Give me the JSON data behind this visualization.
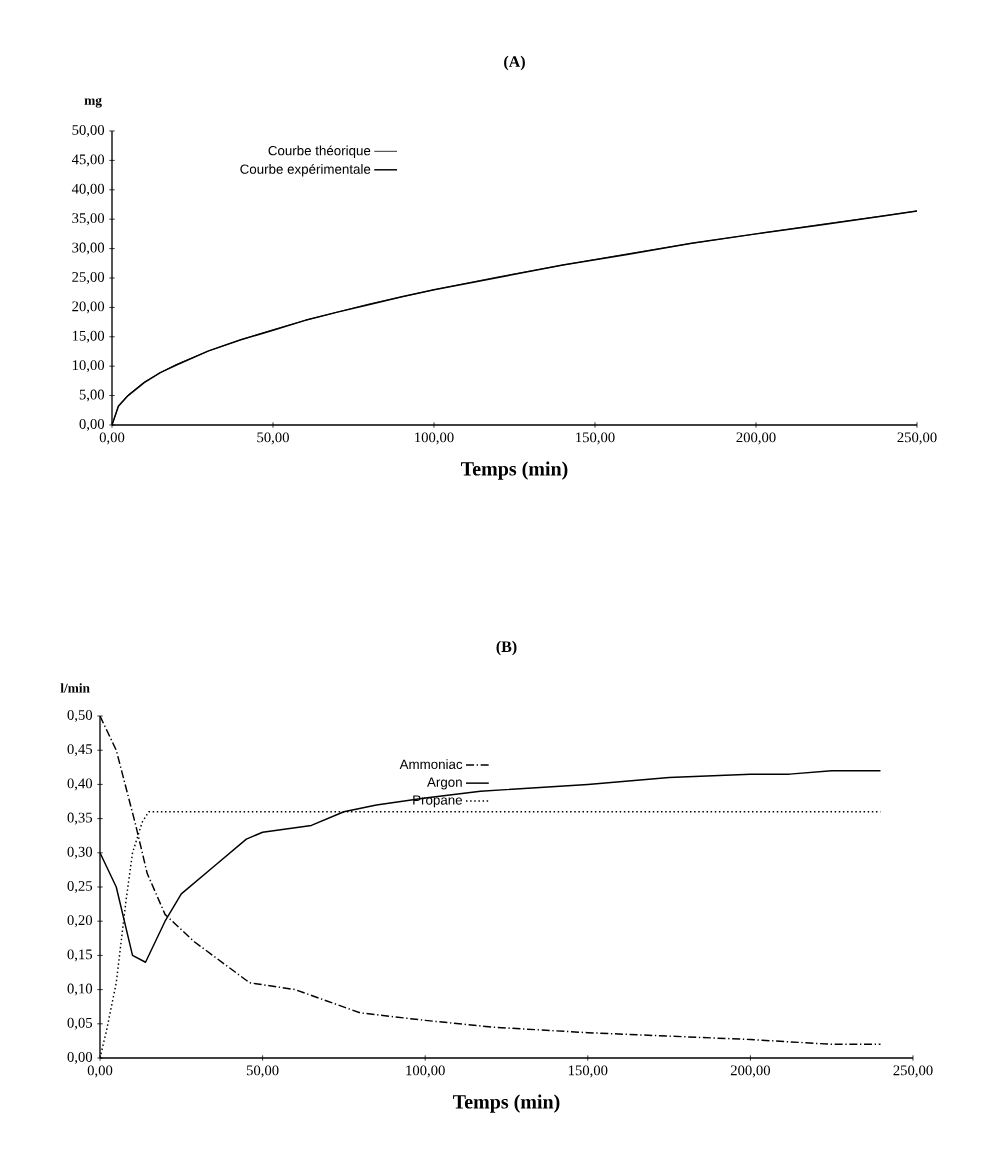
{
  "chart_data": [
    {
      "type": "line",
      "title": "(A)",
      "xlabel": "Temps (min)",
      "ylabel": "mg",
      "xlim": [
        0,
        250
      ],
      "ylim": [
        0,
        50
      ],
      "xticks": [
        {
          "value": 0,
          "label": "0,00"
        },
        {
          "value": 50,
          "label": "50,00"
        },
        {
          "value": 100,
          "label": "100,00"
        },
        {
          "value": 150,
          "label": "150,00"
        },
        {
          "value": 200,
          "label": "200,00"
        },
        {
          "value": 250,
          "label": "250,00"
        }
      ],
      "yticks": [
        {
          "value": 0,
          "label": "0,00"
        },
        {
          "value": 5,
          "label": "5,00"
        },
        {
          "value": 10,
          "label": "10,00"
        },
        {
          "value": 15,
          "label": "15,00"
        },
        {
          "value": 20,
          "label": "20,00"
        },
        {
          "value": 25,
          "label": "25,00"
        },
        {
          "value": 30,
          "label": "30,00"
        },
        {
          "value": 35,
          "label": "35,00"
        },
        {
          "value": 40,
          "label": "40,00"
        },
        {
          "value": 45,
          "label": "45,00"
        },
        {
          "value": 50,
          "label": "50,00"
        }
      ],
      "legend": "top left",
      "marker": "none",
      "x": [
        0,
        2,
        5,
        10,
        15,
        20,
        30,
        40,
        50,
        60,
        70,
        80,
        90,
        100,
        120,
        140,
        160,
        180,
        200,
        220,
        240,
        250
      ],
      "series": [
        {
          "name": "Courbe théorique",
          "color": "#000000",
          "line_style": "solid",
          "values": [
            0,
            3.3,
            5.1,
            7.3,
            8.9,
            10.3,
            12.6,
            14.5,
            16.2,
            17.8,
            19.2,
            20.6,
            21.8,
            23.0,
            25.2,
            27.2,
            29.1,
            30.9,
            32.5,
            34.1,
            35.6,
            36.4
          ]
        },
        {
          "name": "Courbe expérimentale",
          "color": "#000000",
          "line_style": "solid",
          "values": [
            0,
            3.2,
            5.0,
            7.2,
            8.9,
            10.2,
            12.6,
            14.5,
            16.1,
            17.8,
            19.2,
            20.5,
            21.8,
            23.0,
            25.1,
            27.2,
            29.0,
            30.9,
            32.5,
            34.0,
            35.6,
            36.4
          ]
        }
      ]
    },
    {
      "type": "line",
      "title": "(B)",
      "xlabel": "Temps (min)",
      "ylabel": "l/min",
      "xlim": [
        0,
        250
      ],
      "ylim": [
        0,
        0.5
      ],
      "xticks": [
        {
          "value": 0,
          "label": "0,00"
        },
        {
          "value": 50,
          "label": "50,00"
        },
        {
          "value": 100,
          "label": "100,00"
        },
        {
          "value": 150,
          "label": "150,00"
        },
        {
          "value": 200,
          "label": "200,00"
        },
        {
          "value": 250,
          "label": "250,00"
        }
      ],
      "yticks": [
        {
          "value": 0,
          "label": "0,00"
        },
        {
          "value": 0.05,
          "label": "0,05"
        },
        {
          "value": 0.1,
          "label": "0,10"
        },
        {
          "value": 0.15,
          "label": "0,15"
        },
        {
          "value": 0.2,
          "label": "0,20"
        },
        {
          "value": 0.25,
          "label": "0,25"
        },
        {
          "value": 0.3,
          "label": "0,30"
        },
        {
          "value": 0.35,
          "label": "0,35"
        },
        {
          "value": 0.4,
          "label": "0,40"
        },
        {
          "value": 0.45,
          "label": "0,45"
        },
        {
          "value": 0.5,
          "label": "0,50"
        }
      ],
      "legend": "center",
      "marker": "none",
      "series": [
        {
          "name": "Ammoniac",
          "color": "#000000",
          "line_style": "dashdot",
          "x": [
            0,
            5,
            8,
            11,
            14.5,
            20,
            29,
            46,
            60,
            80,
            100,
            121,
            150,
            175,
            200,
            225,
            240
          ],
          "values": [
            0.5,
            0.45,
            0.395,
            0.34,
            0.27,
            0.21,
            0.17,
            0.11,
            0.1,
            0.066,
            0.055,
            0.045,
            0.037,
            0.032,
            0.027,
            0.02,
            0.02
          ]
        },
        {
          "name": "Argon",
          "color": "#000000",
          "line_style": "solid",
          "x": [
            0,
            5,
            10,
            14,
            20,
            25,
            35,
            45,
            50,
            65,
            75,
            85,
            100,
            117,
            150,
            175,
            200,
            212,
            225,
            240
          ],
          "values": [
            0.3,
            0.25,
            0.15,
            0.14,
            0.2,
            0.24,
            0.28,
            0.32,
            0.33,
            0.34,
            0.36,
            0.37,
            0.38,
            0.39,
            0.4,
            0.41,
            0.415,
            0.415,
            0.42,
            0.42
          ]
        },
        {
          "name": "Propane",
          "color": "#000000",
          "line_style": "dotted",
          "x": [
            0,
            2,
            5,
            8,
            10,
            13,
            15,
            240
          ],
          "values": [
            0,
            0.04,
            0.11,
            0.23,
            0.3,
            0.345,
            0.36,
            0.36
          ]
        }
      ]
    }
  ]
}
